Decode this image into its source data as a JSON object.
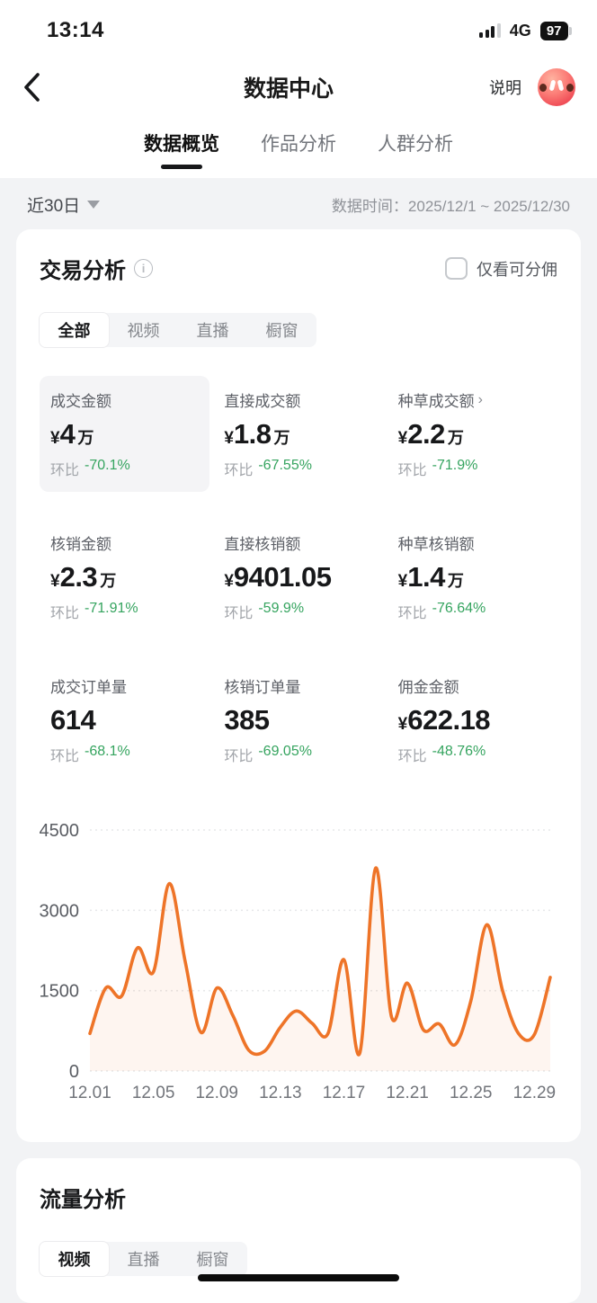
{
  "status_bar": {
    "time": "13:14",
    "network": "4G",
    "battery": "97"
  },
  "header": {
    "title": "数据中心",
    "help_label": "说明"
  },
  "tabs": [
    {
      "label": "数据概览",
      "active": true
    },
    {
      "label": "作品分析",
      "active": false
    },
    {
      "label": "人群分析",
      "active": false
    }
  ],
  "filter": {
    "range_label": "近30日",
    "date_prefix": "数据时间：",
    "date_range": "2025/12/1 ~ 2025/12/30"
  },
  "trade_card": {
    "title": "交易分析",
    "checkbox_label": "仅看可分佣",
    "segments": [
      {
        "label": "全部",
        "active": true
      },
      {
        "label": "视频",
        "active": false
      },
      {
        "label": "直播",
        "active": false
      },
      {
        "label": "橱窗",
        "active": false
      }
    ],
    "metrics": [
      {
        "label": "成交金额",
        "currency": "¥",
        "value": "4",
        "unit": "万",
        "delta_label": "环比",
        "delta": "-70.1%"
      },
      {
        "label": "直接成交额",
        "currency": "¥",
        "value": "1.8",
        "unit": "万",
        "delta_label": "环比",
        "delta": "-67.55%"
      },
      {
        "label": "种草成交额",
        "currency": "¥",
        "value": "2.2",
        "unit": "万",
        "delta_label": "环比",
        "delta": "-71.9%",
        "chevron": "›"
      },
      {
        "label": "核销金额",
        "currency": "¥",
        "value": "2.3",
        "unit": "万",
        "delta_label": "环比",
        "delta": "-71.91%"
      },
      {
        "label": "直接核销额",
        "currency": "¥",
        "value": "9401.05",
        "unit": "",
        "delta_label": "环比",
        "delta": "-59.9%"
      },
      {
        "label": "种草核销额",
        "currency": "¥",
        "value": "1.4",
        "unit": "万",
        "delta_label": "环比",
        "delta": "-76.64%"
      },
      {
        "label": "成交订单量",
        "currency": "",
        "value": "614",
        "unit": "",
        "delta_label": "环比",
        "delta": "-68.1%"
      },
      {
        "label": "核销订单量",
        "currency": "",
        "value": "385",
        "unit": "",
        "delta_label": "环比",
        "delta": "-69.05%"
      },
      {
        "label": "佣金金额",
        "currency": "¥",
        "value": "622.18",
        "unit": "",
        "delta_label": "环比",
        "delta": "-48.76%"
      }
    ]
  },
  "chart_data": {
    "type": "line",
    "title": "",
    "xlabel": "",
    "ylabel": "",
    "x": [
      "12.01",
      "12.02",
      "12.03",
      "12.04",
      "12.05",
      "12.06",
      "12.07",
      "12.08",
      "12.09",
      "12.10",
      "12.11",
      "12.12",
      "12.13",
      "12.14",
      "12.15",
      "12.16",
      "12.17",
      "12.18",
      "12.19",
      "12.20",
      "12.21",
      "12.22",
      "12.23",
      "12.24",
      "12.25",
      "12.26",
      "12.27",
      "12.28",
      "12.29",
      "12.30"
    ],
    "values": [
      700,
      1550,
      1400,
      2300,
      1850,
      3500,
      2050,
      720,
      1550,
      1040,
      390,
      370,
      820,
      1120,
      890,
      700,
      2080,
      330,
      3790,
      1015,
      1640,
      770,
      880,
      490,
      1310,
      2730,
      1500,
      700,
      680,
      1750
    ],
    "yticks": [
      0,
      1500,
      3000,
      4500
    ],
    "ylim": [
      0,
      4500
    ],
    "xtick_labels": [
      "12.01",
      "12.05",
      "12.09",
      "12.13",
      "12.17",
      "12.21",
      "12.25",
      "12.29"
    ],
    "xtick_indices": [
      0,
      4,
      8,
      12,
      16,
      20,
      24,
      28
    ],
    "grid": true,
    "legend_position": "none",
    "smooth": true
  },
  "traffic_card": {
    "title": "流量分析",
    "segments": [
      {
        "label": "视频",
        "active": true
      },
      {
        "label": "直播",
        "active": false
      },
      {
        "label": "橱窗",
        "active": false
      }
    ]
  },
  "colors": {
    "line_orange": "#ee7428",
    "area_orange": "rgba(238,116,40,0.07)",
    "delta_green": "#35a45f",
    "grid_gray": "#e7e8ea",
    "tick_gray": "#71747a",
    "ytick_gray": "#595c62"
  }
}
